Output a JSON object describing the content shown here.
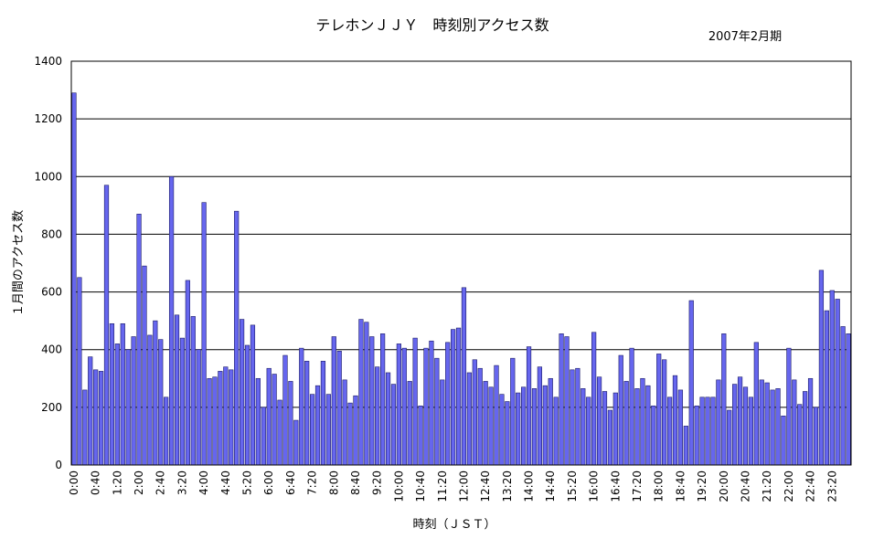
{
  "chart_data": {
    "type": "bar",
    "title": "テレホンＪＪＹ　時刻別アクセス数",
    "subtitle": "2007年2月期",
    "xlabel": "時刻（ＪＳＴ）",
    "ylabel": "１月間のアクセス数",
    "ylim": [
      0,
      1400
    ],
    "yticks": [
      0,
      200,
      400,
      600,
      800,
      1000,
      1200,
      1400
    ],
    "grid": true,
    "xticklabels": [
      "0:00",
      "0:40",
      "1:20",
      "2:00",
      "2:40",
      "3:20",
      "4:00",
      "4:40",
      "5:20",
      "6:00",
      "6:40",
      "7:20",
      "8:00",
      "8:40",
      "9:20",
      "10:00",
      "10:40",
      "11:20",
      "12:00",
      "12:40",
      "13:20",
      "14:00",
      "14:40",
      "15:20",
      "16:00",
      "16:40",
      "17:20",
      "18:00",
      "18:40",
      "19:20",
      "20:00",
      "20:40",
      "21:20",
      "22:00",
      "22:40",
      "23:20"
    ],
    "bar_color": "#6666ee",
    "values": [
      1290,
      650,
      260,
      375,
      330,
      325,
      970,
      490,
      420,
      490,
      400,
      445,
      870,
      690,
      450,
      500,
      435,
      235,
      1000,
      520,
      440,
      640,
      515,
      400,
      910,
      300,
      305,
      325,
      340,
      330,
      880,
      505,
      415,
      485,
      300,
      200,
      335,
      315,
      225,
      380,
      290,
      155,
      405,
      360,
      245,
      275,
      360,
      245,
      445,
      395,
      295,
      215,
      240,
      505,
      495,
      445,
      340,
      455,
      320,
      280,
      420,
      405,
      290,
      440,
      205,
      405,
      430,
      370,
      295,
      425,
      470,
      475,
      615,
      320,
      365,
      335,
      290,
      270,
      345,
      245,
      220,
      370,
      250,
      270,
      410,
      265,
      340,
      275,
      300,
      235,
      455,
      445,
      330,
      335,
      265,
      235,
      460,
      305,
      255,
      190,
      250,
      380,
      290,
      405,
      265,
      300,
      275,
      205,
      385,
      365,
      235,
      310,
      260,
      135,
      570,
      205,
      235,
      235,
      235,
      295,
      455,
      190,
      280,
      305,
      270,
      235,
      425,
      295,
      285,
      260,
      265,
      170,
      405,
      295,
      210,
      255,
      300,
      200,
      675,
      535,
      605,
      575,
      480,
      455
    ]
  }
}
